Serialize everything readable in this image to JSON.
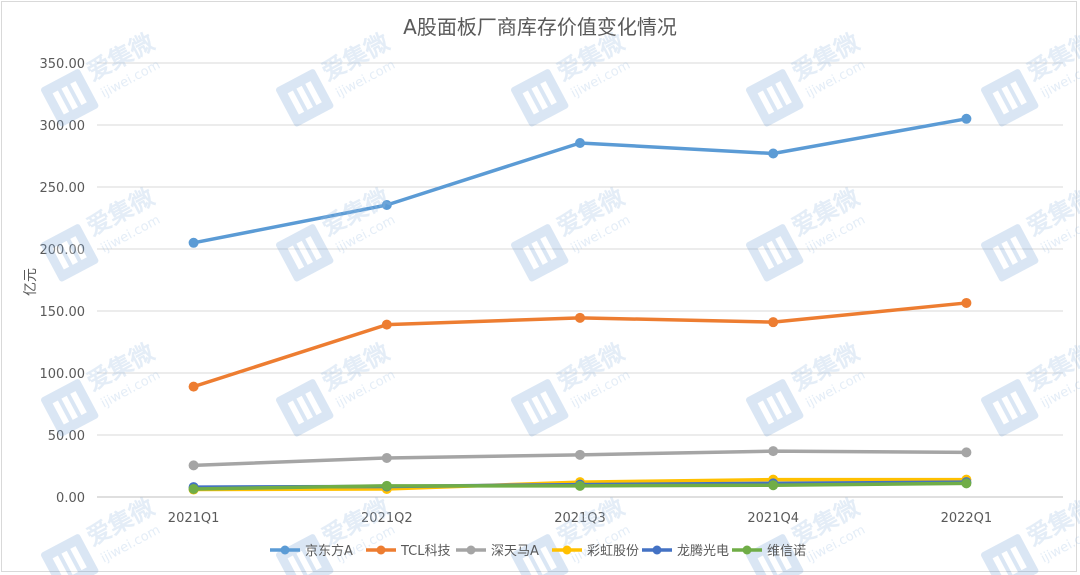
{
  "chart_data": {
    "type": "line",
    "title": "A股面板厂商库存价值变化情况",
    "xlabel": "",
    "ylabel": "亿元",
    "categories": [
      "2021Q1",
      "2021Q2",
      "2021Q3",
      "2021Q4",
      "2022Q1"
    ],
    "ylim": [
      0,
      350
    ],
    "ytick_step": 50,
    "ytick_format": "0.00",
    "grid": true,
    "legend_position": "bottom",
    "series": [
      {
        "name": "京东方A",
        "color": "#5b9bd5",
        "values": [
          205,
          235.5,
          285.5,
          277,
          305
        ]
      },
      {
        "name": "TCL科技",
        "color": "#ed7d31",
        "values": [
          89,
          139,
          144.5,
          141,
          156.5
        ]
      },
      {
        "name": "深天马A",
        "color": "#a5a5a5",
        "values": [
          25.5,
          31.5,
          34,
          37,
          36
        ]
      },
      {
        "name": "彩虹股份",
        "color": "#ffc000",
        "values": [
          6,
          6.5,
          12,
          14,
          14
        ]
      },
      {
        "name": "龙腾光电",
        "color": "#4472c4",
        "values": [
          8,
          8.5,
          10,
          11,
          12
        ]
      },
      {
        "name": "维信诺",
        "color": "#70ad47",
        "values": [
          6.5,
          9,
          9,
          9.5,
          11
        ]
      }
    ]
  },
  "watermark": {
    "brand": "爱集微",
    "site": "ijiwei.com"
  }
}
